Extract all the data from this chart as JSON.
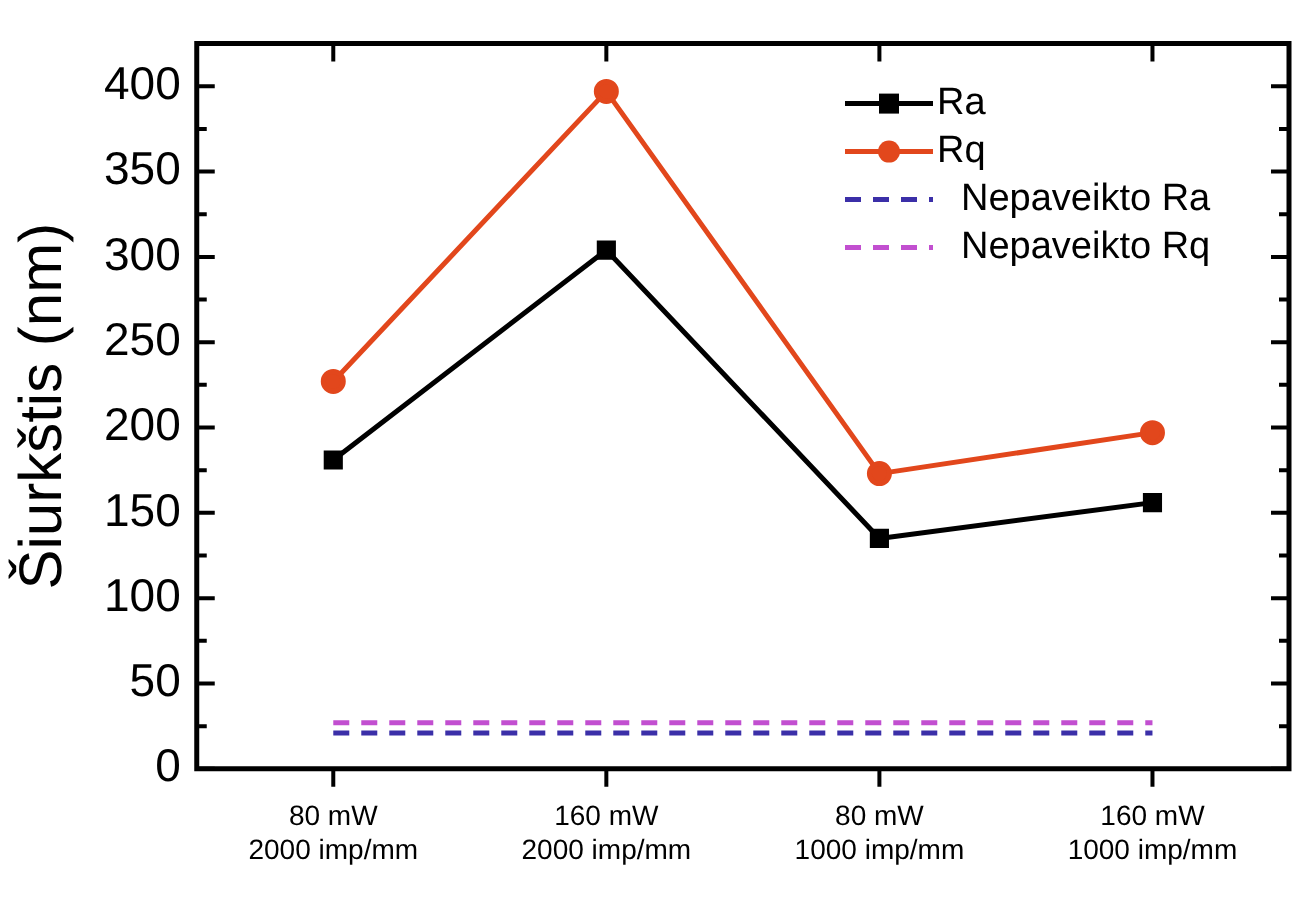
{
  "chart_data": {
    "type": "line",
    "ylabel": "Šiurkštis (nm)",
    "categories": [
      "80 mW\n2000 imp/mm",
      "160 mW\n2000 imp/mm",
      "80 mW\n1000 imp/mm",
      "160 mW\n1000 imp/mm"
    ],
    "series": [
      {
        "name": "Ra",
        "color": "#000000",
        "marker": "square",
        "line_style": "solid",
        "values": [
          181,
          304,
          135,
          156
        ]
      },
      {
        "name": "Rq",
        "color": "#e2471c",
        "marker": "circle",
        "line_style": "solid",
        "values": [
          227,
          397,
          173,
          197
        ]
      },
      {
        "name": "Nepaveikto Ra",
        "color": "#3b2fa8",
        "marker": "none",
        "line_style": "dashed",
        "values": [
          21,
          21,
          21,
          21
        ]
      },
      {
        "name": "Nepaveikto Rq",
        "color": "#c24fd0",
        "marker": "none",
        "line_style": "dashed",
        "values": [
          27,
          27,
          27,
          27
        ]
      }
    ],
    "ylim": [
      0,
      425
    ],
    "yticks": [
      0,
      {
        "value": 25,
        "label": null
      },
      50,
      {
        "value": 75,
        "label": null
      },
      100,
      {
        "value": 125,
        "label": null
      },
      150,
      {
        "value": 175,
        "label": null
      },
      200,
      {
        "value": 225,
        "label": null
      },
      250,
      {
        "value": 275,
        "label": null
      },
      300,
      {
        "value": 325,
        "label": null
      },
      350,
      {
        "value": 375,
        "label": null
      },
      400
    ],
    "grid": false,
    "legend": "top right"
  }
}
